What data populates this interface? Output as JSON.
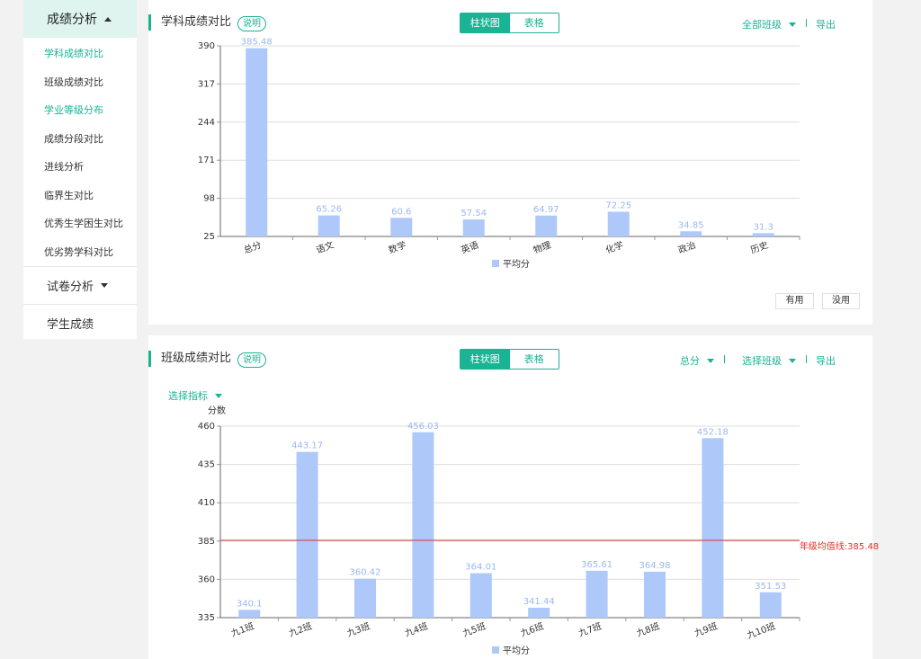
{
  "sidebar": {
    "section_main": "成绩分析",
    "items": [
      {
        "label": "学科成绩对比",
        "active": true
      },
      {
        "label": "班级成绩对比",
        "active": false
      },
      {
        "label": "学业等级分布",
        "active": true
      },
      {
        "label": "成绩分段对比",
        "active": false
      },
      {
        "label": "进线分析",
        "active": false
      },
      {
        "label": "临界生对比",
        "active": false
      },
      {
        "label": "优秀生学困生对比",
        "active": false
      },
      {
        "label": "优劣势学科对比",
        "active": false
      }
    ],
    "section_exam": "试卷分析",
    "section_student": "学生成绩"
  },
  "panel1": {
    "title": "学科成绩对比",
    "note": "说明",
    "toggle_bar": "柱状图",
    "toggle_table": "表格",
    "class_select": "全部班级",
    "export": "导出",
    "btn_useful": "有用",
    "btn_useless": "没用"
  },
  "panel2": {
    "title": "班级成绩对比",
    "note": "说明",
    "toggle_bar": "柱状图",
    "toggle_table": "表格",
    "subject_select": "总分",
    "class_select": "选择班级",
    "export": "导出",
    "metric_select": "选择指标"
  },
  "colors": {
    "accent": "#1ab394",
    "bar": "#adc8f9",
    "label": "#9ab8ef",
    "avg_line": "#e0302a",
    "sidebar_head_bg": "#dff4ef"
  },
  "chart_data": [
    {
      "type": "bar",
      "categories": [
        "总分",
        "语文",
        "数学",
        "英语",
        "物理",
        "化学",
        "政治",
        "历史"
      ],
      "series": [
        {
          "name": "平均分",
          "values": [
            385.48,
            65.26,
            60.6,
            57.54,
            64.97,
            72.25,
            34.85,
            31.3
          ]
        }
      ],
      "yticks": [
        25,
        98,
        171,
        244,
        317,
        390
      ],
      "ylim": [
        25,
        390
      ],
      "ylabel": "",
      "legend": "bottom-center"
    },
    {
      "type": "bar",
      "categories": [
        "九1班",
        "九2班",
        "九3班",
        "九4班",
        "九5班",
        "九6班",
        "九7班",
        "九8班",
        "九9班",
        "九10班"
      ],
      "series": [
        {
          "name": "平均分",
          "values": [
            340.1,
            443.17,
            360.42,
            456.03,
            364.01,
            341.44,
            365.61,
            364.98,
            452.18,
            351.53
          ]
        }
      ],
      "yticks": [
        335,
        360,
        385,
        410,
        435,
        460
      ],
      "ylim": [
        335,
        460
      ],
      "ylabel": "分数",
      "reference_line": {
        "value": 385.48,
        "label": "年级均值线:385.48"
      },
      "legend": "bottom-center"
    }
  ]
}
